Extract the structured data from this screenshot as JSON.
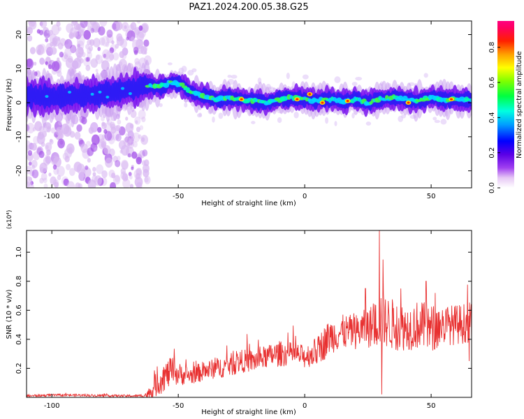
{
  "title": "PAZ1.2024.200.05.38.G25",
  "colors": {
    "line": "#e83030",
    "axis": "#000000",
    "background": "#ffffff"
  },
  "chart_data": [
    {
      "type": "heatmap",
      "xlabel": "Height of straight line (km)",
      "ylabel": "Frequency (Hz)",
      "xlim": [
        -110,
        66
      ],
      "ylim": [
        -25,
        24
      ],
      "x_ticks": [
        -100,
        -50,
        0,
        50
      ],
      "y_ticks": [
        -20,
        -10,
        0,
        10,
        20
      ],
      "grid": false,
      "colorbar": {
        "label": "Normalized spectral amplitude",
        "range": [
          0,
          0.95
        ],
        "ticks": [
          "0.0",
          "0.2",
          "0.4",
          "0.6",
          "0.8"
        ],
        "tick_values": [
          0,
          0.2,
          0.4,
          0.6,
          0.8
        ],
        "colormap": "hsv-rainbow (white-purple-blue-cyan-green-yellow-orange-red-pink)"
      },
      "ridge": {
        "x": [
          -110,
          -100,
          -90,
          -80,
          -70,
          -63,
          -58,
          -52,
          -48,
          -45,
          -40,
          -35,
          -30,
          -25,
          -20,
          -15,
          -10,
          -5,
          0,
          5,
          10,
          15,
          20,
          25,
          30,
          35,
          40,
          45,
          50,
          55,
          60,
          66
        ],
        "frequency": [
          2,
          1.5,
          2,
          2.5,
          4,
          5,
          4.5,
          6,
          5,
          3,
          2,
          1,
          1.5,
          1,
          0.5,
          0,
          1,
          1.5,
          1,
          0.5,
          1,
          0.5,
          1,
          0,
          1,
          1.5,
          1,
          0.5,
          1.5,
          1,
          1,
          0.5
        ]
      },
      "bright_spots": [
        {
          "x": -3,
          "frequency": 1
        },
        {
          "x": 2,
          "frequency": 2.5
        },
        {
          "x": 7,
          "frequency": 0
        },
        {
          "x": 17,
          "frequency": 0.5
        },
        {
          "x": 41,
          "frequency": 0
        },
        {
          "x": -25,
          "frequency": 1
        },
        {
          "x": 58,
          "frequency": 1
        }
      ]
    },
    {
      "type": "line",
      "xlabel": "Height of straight line (km)",
      "ylabel": "SNR (10 * v/v)",
      "y_multiplier": "(x10⁴)",
      "xlim": [
        -110,
        66
      ],
      "ylim": [
        0,
        1.15
      ],
      "x_ticks": [
        -100,
        -50,
        0,
        50
      ],
      "y_ticks": [
        0.2,
        0.4,
        0.6,
        0.8,
        1.0
      ],
      "grid": false,
      "series": [
        {
          "x": [
            -110,
            -100,
            -90,
            -80,
            -70,
            -65,
            -62,
            -60,
            -57,
            -55,
            -52,
            -50,
            -45,
            -40,
            -35,
            -30,
            -25,
            -20,
            -15,
            -10,
            -5,
            0,
            5,
            8,
            10,
            15,
            20,
            25,
            28,
            30,
            32,
            35,
            40,
            45,
            50,
            55,
            60,
            66
          ],
          "mean": [
            0.01,
            0.015,
            0.015,
            0.012,
            0.01,
            0.01,
            0.02,
            0.06,
            0.12,
            0.15,
            0.18,
            0.16,
            0.15,
            0.18,
            0.2,
            0.22,
            0.25,
            0.25,
            0.28,
            0.3,
            0.3,
            0.28,
            0.32,
            0.38,
            0.42,
            0.45,
            0.45,
            0.48,
            0.5,
            0.55,
            0.52,
            0.5,
            0.48,
            0.5,
            0.47,
            0.5,
            0.5,
            0.52
          ],
          "spread": [
            0.008,
            0.008,
            0.008,
            0.008,
            0.008,
            0.01,
            0.03,
            0.07,
            0.1,
            0.1,
            0.1,
            0.08,
            0.06,
            0.07,
            0.07,
            0.08,
            0.08,
            0.08,
            0.08,
            0.09,
            0.08,
            0.08,
            0.1,
            0.12,
            0.12,
            0.12,
            0.12,
            0.14,
            0.16,
            0.2,
            0.18,
            0.18,
            0.16,
            0.17,
            0.17,
            0.14,
            0.14,
            0.14
          ]
        }
      ],
      "peaks": [
        {
          "x": 29.5,
          "y": 1.15
        },
        {
          "x": 31,
          "y": 0.95
        },
        {
          "x": 30.5,
          "y": 0.02
        },
        {
          "x": 24,
          "y": 0.75
        },
        {
          "x": 48,
          "y": 0.8
        },
        {
          "x": 38,
          "y": 0.75
        },
        {
          "x": 65,
          "y": 0.25
        }
      ]
    }
  ]
}
